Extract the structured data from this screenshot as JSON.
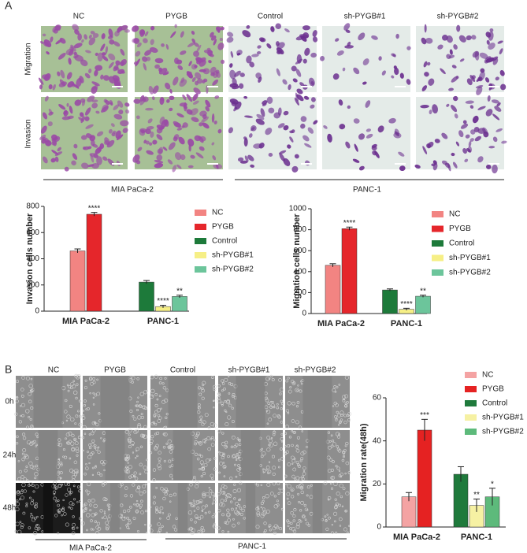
{
  "panel_a": {
    "label": "A",
    "columns": [
      "NC",
      "PYGB",
      "Control",
      "sh-PYGB#1",
      "sh-PYGB#2"
    ],
    "rows": [
      "Migration",
      "Invasion"
    ],
    "groups": [
      "MIA PaCa-2",
      "PANC-1"
    ]
  },
  "panel_b": {
    "label": "B",
    "columns": [
      "NC",
      "PYGB",
      "Control",
      "sh-PYGB#1",
      "sh-PYGB#2"
    ],
    "rows": [
      "0h",
      "24h",
      "48h"
    ],
    "groups": [
      "MIA PaCa-2",
      "PANC-1"
    ]
  },
  "chart_data": [
    {
      "type": "bar",
      "y_label": "Invasion cells number",
      "categories": [
        "MIA PaCa-2",
        "PANC-1"
      ],
      "series": [
        {
          "name": "NC",
          "color": "#f28482",
          "values": [
            460,
            null
          ],
          "errors": [
            15,
            null
          ],
          "annotations": [
            null,
            null
          ]
        },
        {
          "name": "PYGB",
          "color": "#e5262b",
          "values": [
            740,
            null
          ],
          "errors": [
            14,
            null
          ],
          "annotations": [
            "****",
            null
          ]
        },
        {
          "name": "Control",
          "color": "#1d7a3a",
          "values": [
            null,
            222
          ],
          "errors": [
            null,
            12
          ],
          "annotations": [
            null,
            null
          ]
        },
        {
          "name": "sh-PYGB#1",
          "color": "#f6ef86",
          "values": [
            null,
            35
          ],
          "errors": [
            null,
            10
          ],
          "annotations": [
            null,
            "****"
          ]
        },
        {
          "name": "sh-PYGB#2",
          "color": "#6cc59b",
          "values": [
            null,
            112
          ],
          "errors": [
            null,
            10
          ],
          "annotations": [
            null,
            "**"
          ]
        }
      ],
      "ylim": [
        0,
        800
      ],
      "yticks": [
        0,
        200,
        400,
        600,
        800
      ],
      "legend": "right"
    },
    {
      "type": "bar",
      "y_label": "Migration cells number",
      "categories": [
        "MIA PaCa-2",
        "PANC-1"
      ],
      "series": [
        {
          "name": "NC",
          "color": "#f28482",
          "values": [
            460,
            null
          ],
          "errors": [
            15,
            null
          ],
          "annotations": [
            null,
            null
          ]
        },
        {
          "name": "PYGB",
          "color": "#e5262b",
          "values": [
            810,
            null
          ],
          "errors": [
            15,
            null
          ],
          "annotations": [
            "****",
            null
          ]
        },
        {
          "name": "Control",
          "color": "#1d7a3a",
          "values": [
            null,
            225
          ],
          "errors": [
            null,
            10
          ],
          "annotations": [
            null,
            null
          ]
        },
        {
          "name": "sh-PYGB#1",
          "color": "#f6ef86",
          "values": [
            null,
            40
          ],
          "errors": [
            null,
            10
          ],
          "annotations": [
            null,
            "****"
          ]
        },
        {
          "name": "sh-PYGB#2",
          "color": "#6cc59b",
          "values": [
            null,
            165
          ],
          "errors": [
            null,
            10
          ],
          "annotations": [
            null,
            "**"
          ]
        }
      ],
      "ylim": [
        0,
        1000
      ],
      "yticks": [
        0,
        200,
        400,
        600,
        800,
        1000
      ],
      "legend": "right"
    },
    {
      "type": "bar",
      "y_label": "Migration rate(48h)",
      "categories": [
        "MIA PaCa-2",
        "PANC-1"
      ],
      "series": [
        {
          "name": "NC",
          "color": "#f4a3a3",
          "values": [
            14,
            null
          ],
          "errors": [
            2,
            null
          ],
          "annotations": [
            null,
            null
          ]
        },
        {
          "name": "PYGB",
          "color": "#e52222",
          "values": [
            45,
            null
          ],
          "errors": [
            5,
            null
          ],
          "annotations": [
            "***",
            null
          ]
        },
        {
          "name": "Control",
          "color": "#1f7a3c",
          "values": [
            null,
            24.5
          ],
          "errors": [
            null,
            3.5
          ],
          "annotations": [
            null,
            null
          ]
        },
        {
          "name": "sh-PYGB#1",
          "color": "#f6f1a3",
          "values": [
            null,
            10
          ],
          "errors": [
            null,
            3
          ],
          "annotations": [
            null,
            "**"
          ]
        },
        {
          "name": "sh-PYGB#2",
          "color": "#5dba7b",
          "values": [
            null,
            14
          ],
          "errors": [
            null,
            4
          ],
          "annotations": [
            null,
            "*"
          ]
        }
      ],
      "ylim": [
        0,
        60
      ],
      "yticks": [
        0,
        20,
        40,
        60
      ],
      "legend": "right"
    }
  ]
}
